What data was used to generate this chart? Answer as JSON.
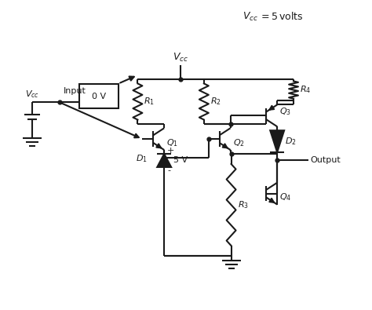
{
  "bg": "#ffffff",
  "lc": "#1a1a1a",
  "lw": 1.5,
  "figsize": [
    4.74,
    3.95
  ],
  "dpi": 100
}
